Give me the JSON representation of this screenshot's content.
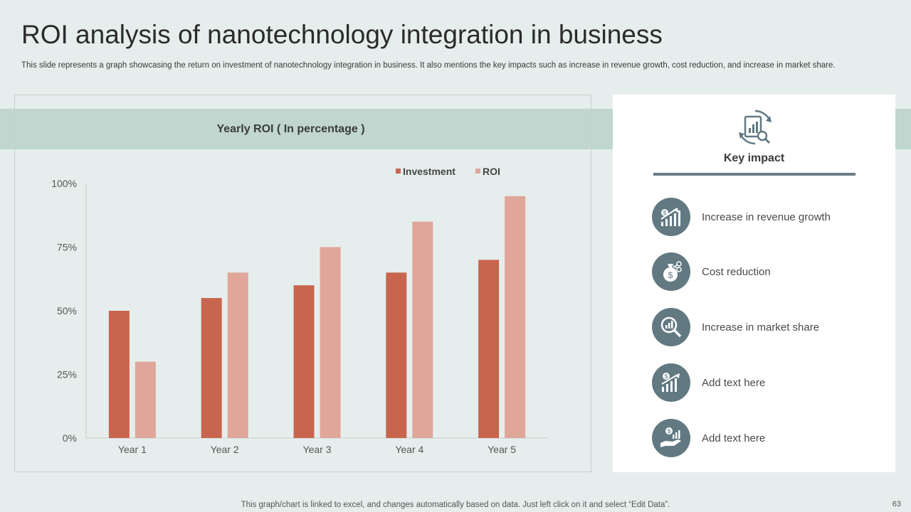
{
  "header": {
    "title": "ROI analysis of nanotechnology integration in business",
    "subtitle": "This slide represents a graph showcasing the return on investment of nanotechnology integration in business. It also mentions the key impacts such as increase in revenue growth, cost reduction, and increase in market share."
  },
  "chart_data": {
    "type": "bar",
    "title": "Yearly ROI ( In percentage )",
    "categories": [
      "Year 1",
      "Year 2",
      "Year 3",
      "Year 4",
      "Year 5"
    ],
    "series": [
      {
        "name": "Investment",
        "values": [
          50,
          55,
          60,
          65,
          70
        ],
        "color": "#c8654f"
      },
      {
        "name": "ROI",
        "values": [
          30,
          65,
          75,
          85,
          95
        ],
        "color": "#e0a69a"
      }
    ],
    "ylim": [
      0,
      100
    ],
    "yticks": [
      0,
      25,
      50,
      75,
      100
    ],
    "ytick_labels": [
      "0%",
      "25%",
      "50%",
      "75%",
      "100%"
    ],
    "xlabel": "",
    "ylabel": "",
    "grid": false,
    "legend_position": "top-right"
  },
  "impact": {
    "title": "Key impact",
    "top_icon": "report-analysis-icon",
    "items": [
      {
        "label": "Increase in revenue growth",
        "icon": "revenue-growth-icon"
      },
      {
        "label": "Cost reduction",
        "icon": "money-bag-icon"
      },
      {
        "label": "Increase in market share",
        "icon": "market-analysis-icon"
      },
      {
        "label": "Add text here",
        "icon": "growth-chart-icon"
      },
      {
        "label": "Add text here",
        "icon": "investment-hand-icon"
      }
    ]
  },
  "footer": {
    "note": "This graph/chart is linked to excel, and changes automatically based on data. Just left click on it and select “Edit Data”.",
    "page_number": "63"
  },
  "colors": {
    "background": "#e5eeec",
    "band": "#c0d6cf",
    "icon_circle": "#627982"
  }
}
